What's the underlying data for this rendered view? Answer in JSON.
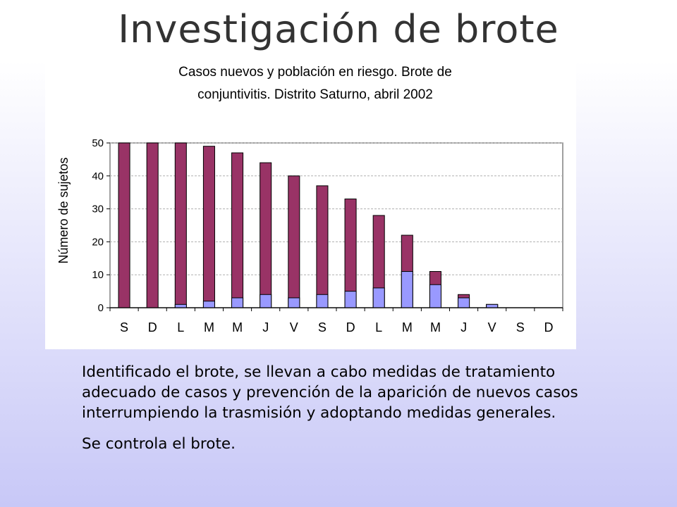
{
  "slide": {
    "title": "Investigación de brote",
    "paragraph1": "Identificado el brote, se llevan a cabo medidas de tratamiento adecuado de casos y  prevención de la aparición de nuevos casos interrumpiendo la trasmisión y adoptando medidas generales.",
    "paragraph2": "Se controla el brote."
  },
  "chart_data": {
    "type": "bar",
    "title_lines": [
      "Casos nuevos y población en riesgo. Brote de",
      "conjuntivitis. Distrito Saturno, abril 2002"
    ],
    "ylabel": "Número de sujetos",
    "xlabel": "",
    "ylim": [
      0,
      50
    ],
    "yticks": [
      0,
      10,
      20,
      30,
      40,
      50
    ],
    "grid": true,
    "legend": "none",
    "stacked": false,
    "overlaid": true,
    "categories": [
      "S",
      "D",
      "L",
      "M",
      "M",
      "J",
      "V",
      "S",
      "D",
      "L",
      "M",
      "M",
      "J",
      "V",
      "S",
      "D"
    ],
    "series": [
      {
        "color": "#993366",
        "values": [
          50,
          50,
          50,
          49,
          47,
          44,
          40,
          37,
          33,
          28,
          22,
          11,
          4,
          1,
          0,
          0
        ]
      },
      {
        "color": "#9999ff",
        "values": [
          0,
          0,
          1,
          2,
          3,
          4,
          3,
          4,
          5,
          6,
          11,
          7,
          3,
          1,
          0,
          0
        ]
      }
    ]
  }
}
